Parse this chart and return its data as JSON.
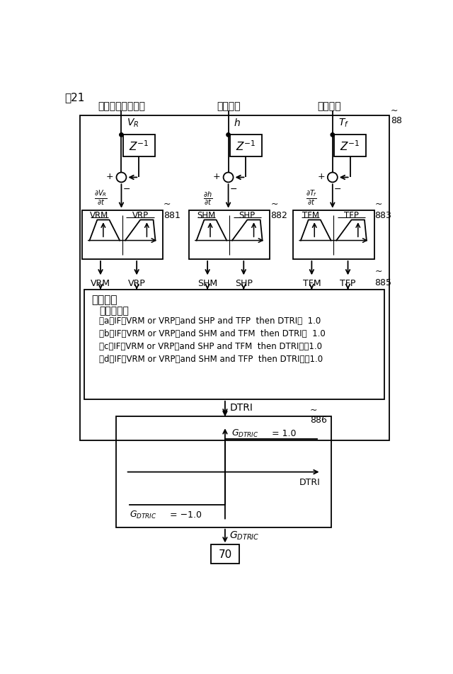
{
  "bg_color": "#ffffff",
  "line_color": "#000000",
  "title": "図21",
  "label_top1": "圧延機ロール速度",
  "label_top2": "出側板厚",
  "label_top3": "出側張力",
  "label_88": "88",
  "label_881": "881",
  "label_882": "882",
  "label_883": "883",
  "label_885": "885",
  "label_886": "886",
  "label_suiron": "推論処理",
  "label_rule_title": "推論ルール",
  "rule_a": "（a）IF（VRM or VRP）and SHP and TFP  then DTRI＝  1.0",
  "rule_b": "（b）IF（VRM or VRP）and SHM and TFM  then DTRI＝  1.0",
  "rule_c": "（c）IF（VRM or VRP）and SHP and TFM  then DTRI＝－1.0",
  "rule_d": "（d）IF（VRM or VRP）and SHM and TFP  then DTRI＝－1.0",
  "label_DTRI": "DTRI",
  "label_G_pos": "G_DTRIC = 1.0",
  "label_G_neg": "G_DTRIC = −1.0",
  "label_GDTRIC": "G_DTRIC",
  "label_70": "70"
}
